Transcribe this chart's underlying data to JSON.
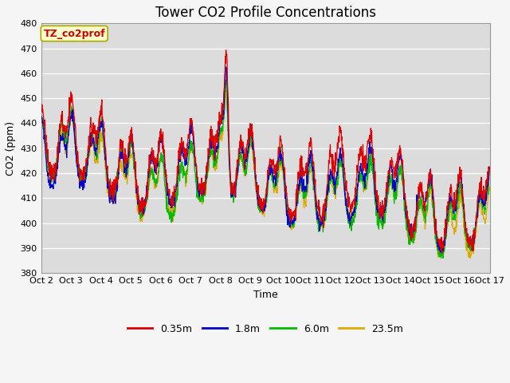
{
  "title": "Tower CO2 Profile Concentrations",
  "xlabel": "Time",
  "ylabel": "CO2 (ppm)",
  "ylim": [
    380,
    480
  ],
  "yticks": [
    380,
    390,
    400,
    410,
    420,
    430,
    440,
    450,
    460,
    470,
    480
  ],
  "xtick_labels": [
    "Oct 2",
    "Oct 3",
    "Oct 4",
    "Oct 5",
    "Oct 6",
    "Oct 7",
    "Oct 8",
    "Oct 9",
    "Oct 10",
    "Oct 11",
    "Oct 12",
    "Oct 13",
    "Oct 14",
    "Oct 15",
    "Oct 16",
    "Oct 17"
  ],
  "series_labels": [
    "0.35m",
    "1.8m",
    "6.0m",
    "23.5m"
  ],
  "series_colors": [
    "#dd0000",
    "#0000cc",
    "#00bb00",
    "#ddaa00"
  ],
  "annotation_text": "TZ_co2prof",
  "annotation_color": "#cc0000",
  "annotation_bg": "#ffffcc",
  "annotation_border": "#aaaa00",
  "background_color": "#dcdcdc",
  "grid_color": "#ffffff",
  "fig_bg_color": "#f5f5f5",
  "title_fontsize": 12,
  "axis_fontsize": 9,
  "tick_fontsize": 8,
  "legend_fontsize": 9
}
